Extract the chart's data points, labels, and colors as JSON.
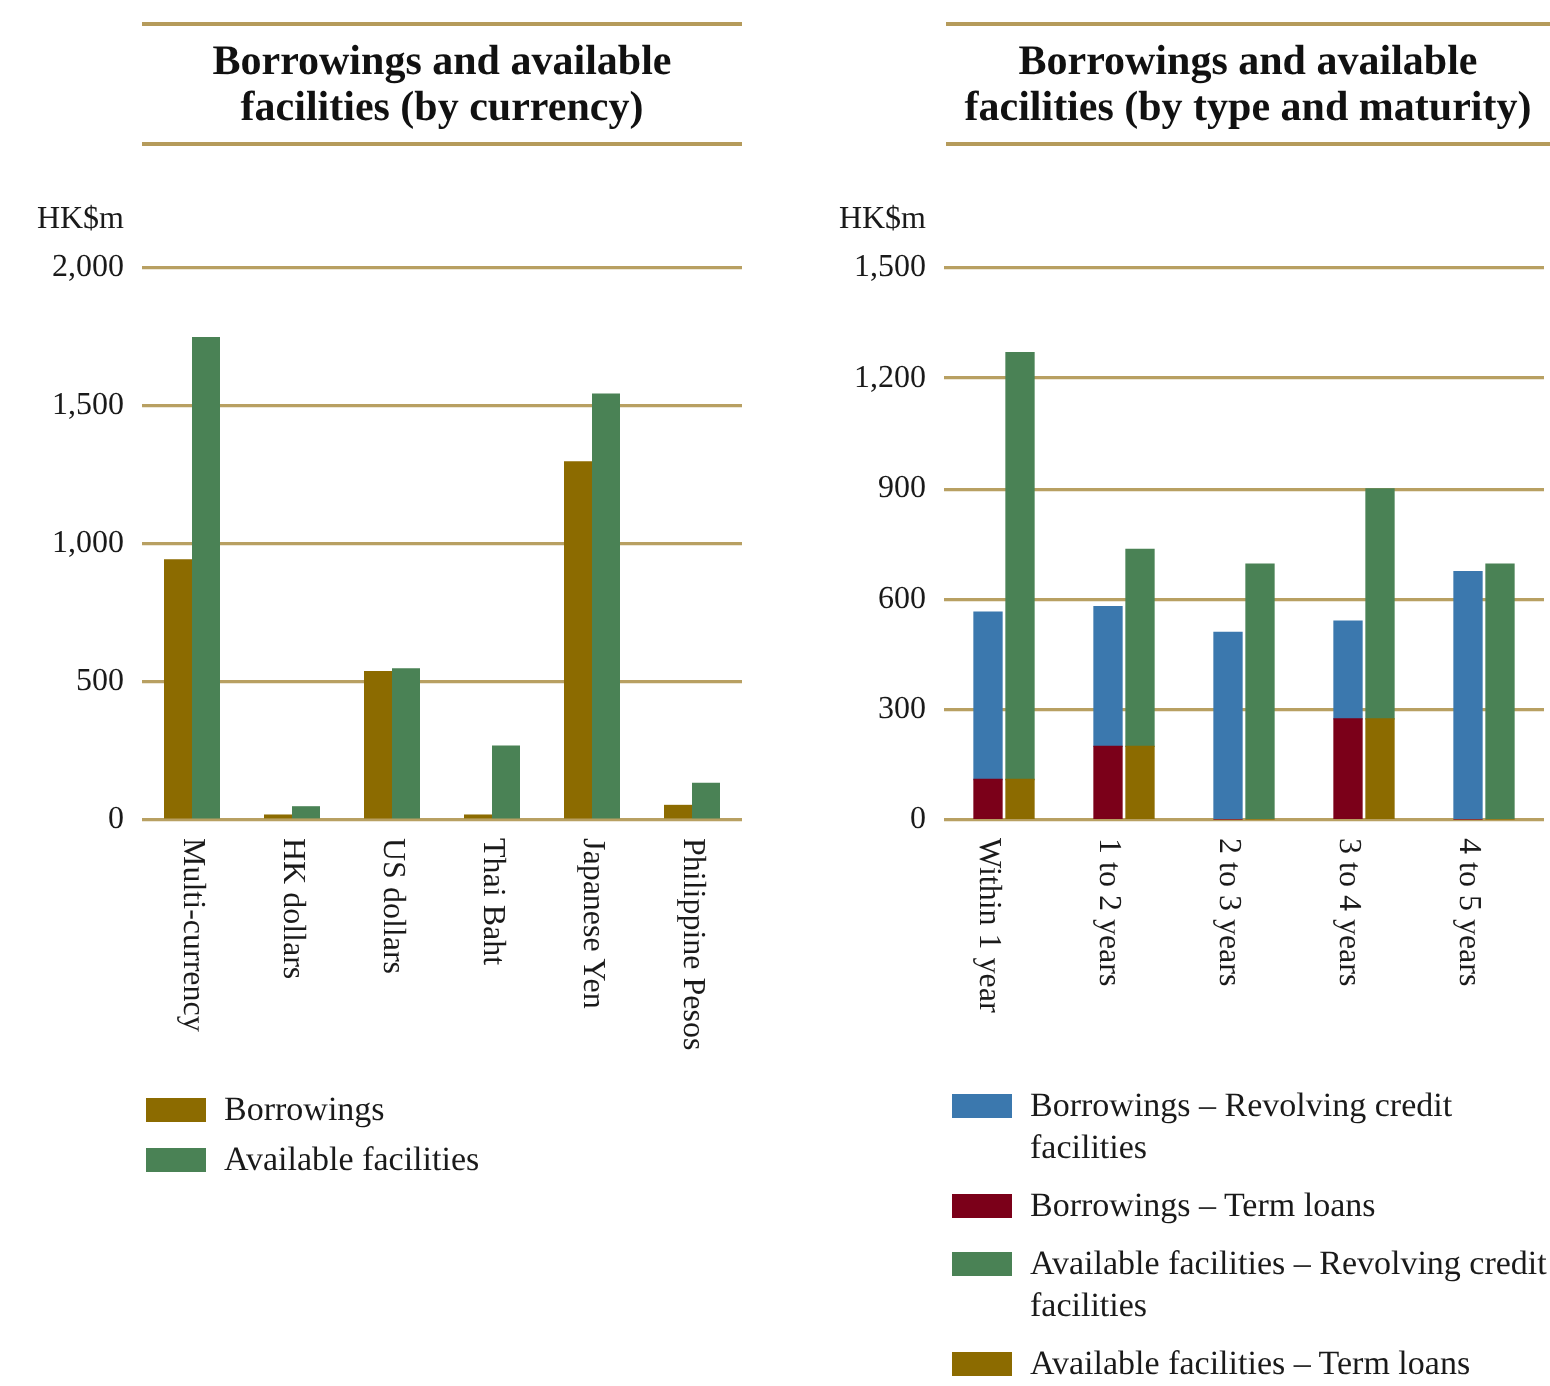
{
  "chart_data": [
    {
      "type": "bar",
      "title": "Borrowings and available facilities (by currency)",
      "ylabel": "HK$m",
      "categories": [
        "Multi-currency",
        "HK dollars",
        "US dollars",
        "Thai Baht",
        "Japanese Yen",
        "Philippine Pesos"
      ],
      "series": [
        {
          "name": "Borrowings",
          "color": "#8c6b00",
          "values": [
            945,
            20,
            540,
            20,
            1300,
            55
          ]
        },
        {
          "name": "Available facilities",
          "color": "#4a8255",
          "values": [
            1750,
            50,
            550,
            270,
            1545,
            135
          ]
        }
      ],
      "ylim": [
        0,
        2000
      ],
      "yticks": [
        0,
        500,
        {
          "value": 1000,
          "label": "1,000"
        },
        {
          "value": 1500,
          "label": "1,500"
        },
        {
          "value": 2000,
          "label": "2,000"
        }
      ],
      "grid": "y",
      "legend": "bottom"
    },
    {
      "type": "bar",
      "title": "Borrowings and available facilities (by type and maturity)",
      "ylabel": "HK$m",
      "categories": [
        "Within 1 year",
        null,
        "1 to 2 years",
        null,
        "2 to 3 years",
        null,
        "3 to 4 years",
        null,
        "4 to 5 years",
        null
      ],
      "stacked": true,
      "series": [
        {
          "name": "Borrowings – Term loans",
          "color": "#7b0019",
          "values": [
            110,
            null,
            200,
            null,
            0,
            null,
            275,
            null,
            0,
            null
          ]
        },
        {
          "name": "Borrowings – Revolving credit facilities",
          "color": "#3b78ae",
          "values": [
            455,
            null,
            380,
            null,
            510,
            null,
            265,
            null,
            675,
            null
          ]
        },
        {
          "name": "Available facilities – Term loans",
          "color": "#8c6b00",
          "values": [
            null,
            110,
            null,
            200,
            null,
            0,
            null,
            275,
            null,
            0
          ]
        },
        {
          "name": "Available facilities – Revolving credit facilities",
          "color": "#4a8255",
          "values": [
            null,
            1160,
            null,
            535,
            null,
            695,
            null,
            625,
            null,
            695
          ]
        }
      ],
      "ylim": [
        0,
        1500
      ],
      "yticks": [
        0,
        300,
        600,
        900,
        {
          "value": 1200,
          "label": "1,200"
        },
        {
          "value": 1500,
          "label": "1,500"
        }
      ],
      "grid": "y",
      "legend": "bottom"
    }
  ]
}
